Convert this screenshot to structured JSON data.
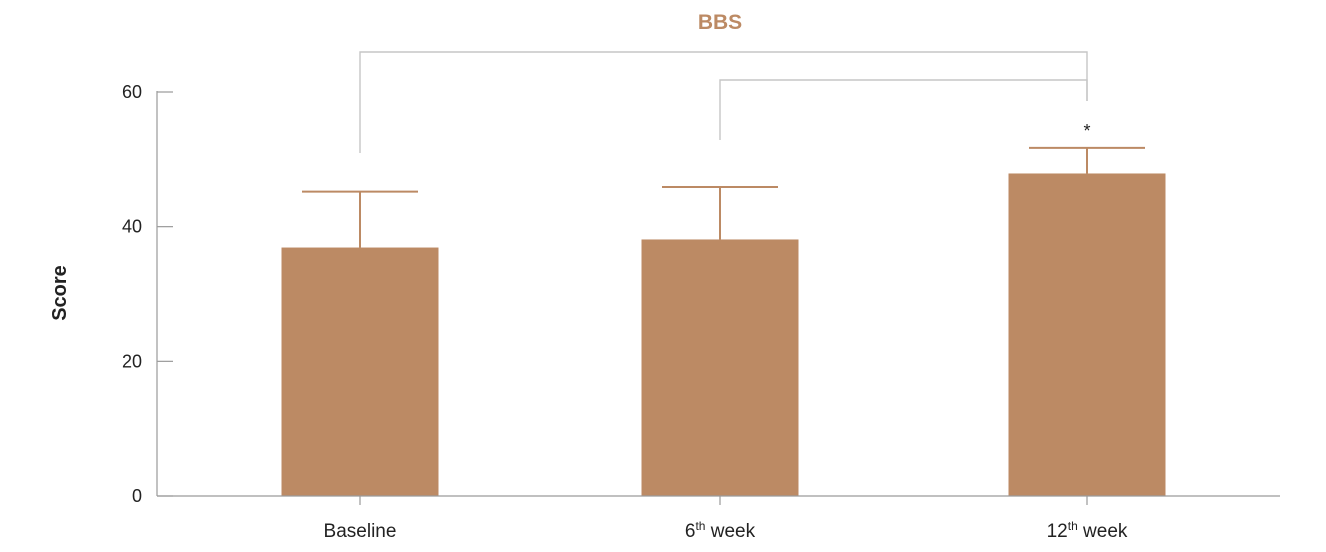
{
  "colors": {
    "bar": "#bc8a64",
    "title": "#bc8a64",
    "axis": "#9a9a9a",
    "bracket": "#c6c6c6",
    "text": "#222222"
  },
  "chart_data": {
    "type": "bar",
    "title": "BBS",
    "xlabel": "",
    "ylabel": "Score",
    "ylim": [
      0,
      60
    ],
    "yticks": [
      0,
      20,
      40,
      60
    ],
    "grid": false,
    "legend": "none",
    "categories": [
      {
        "base": "Baseline",
        "sup": "",
        "rest": ""
      },
      {
        "base": "6",
        "sup": "th",
        "rest": " week"
      },
      {
        "base": "12",
        "sup": "th",
        "rest": " week"
      }
    ],
    "values": [
      36.9,
      38.1,
      47.9
    ],
    "error": [
      8.3,
      7.8,
      3.8
    ],
    "significance": [
      {
        "from": 0,
        "to": 2,
        "label": "*"
      },
      {
        "from": 1,
        "to": 2,
        "label": ""
      }
    ]
  }
}
